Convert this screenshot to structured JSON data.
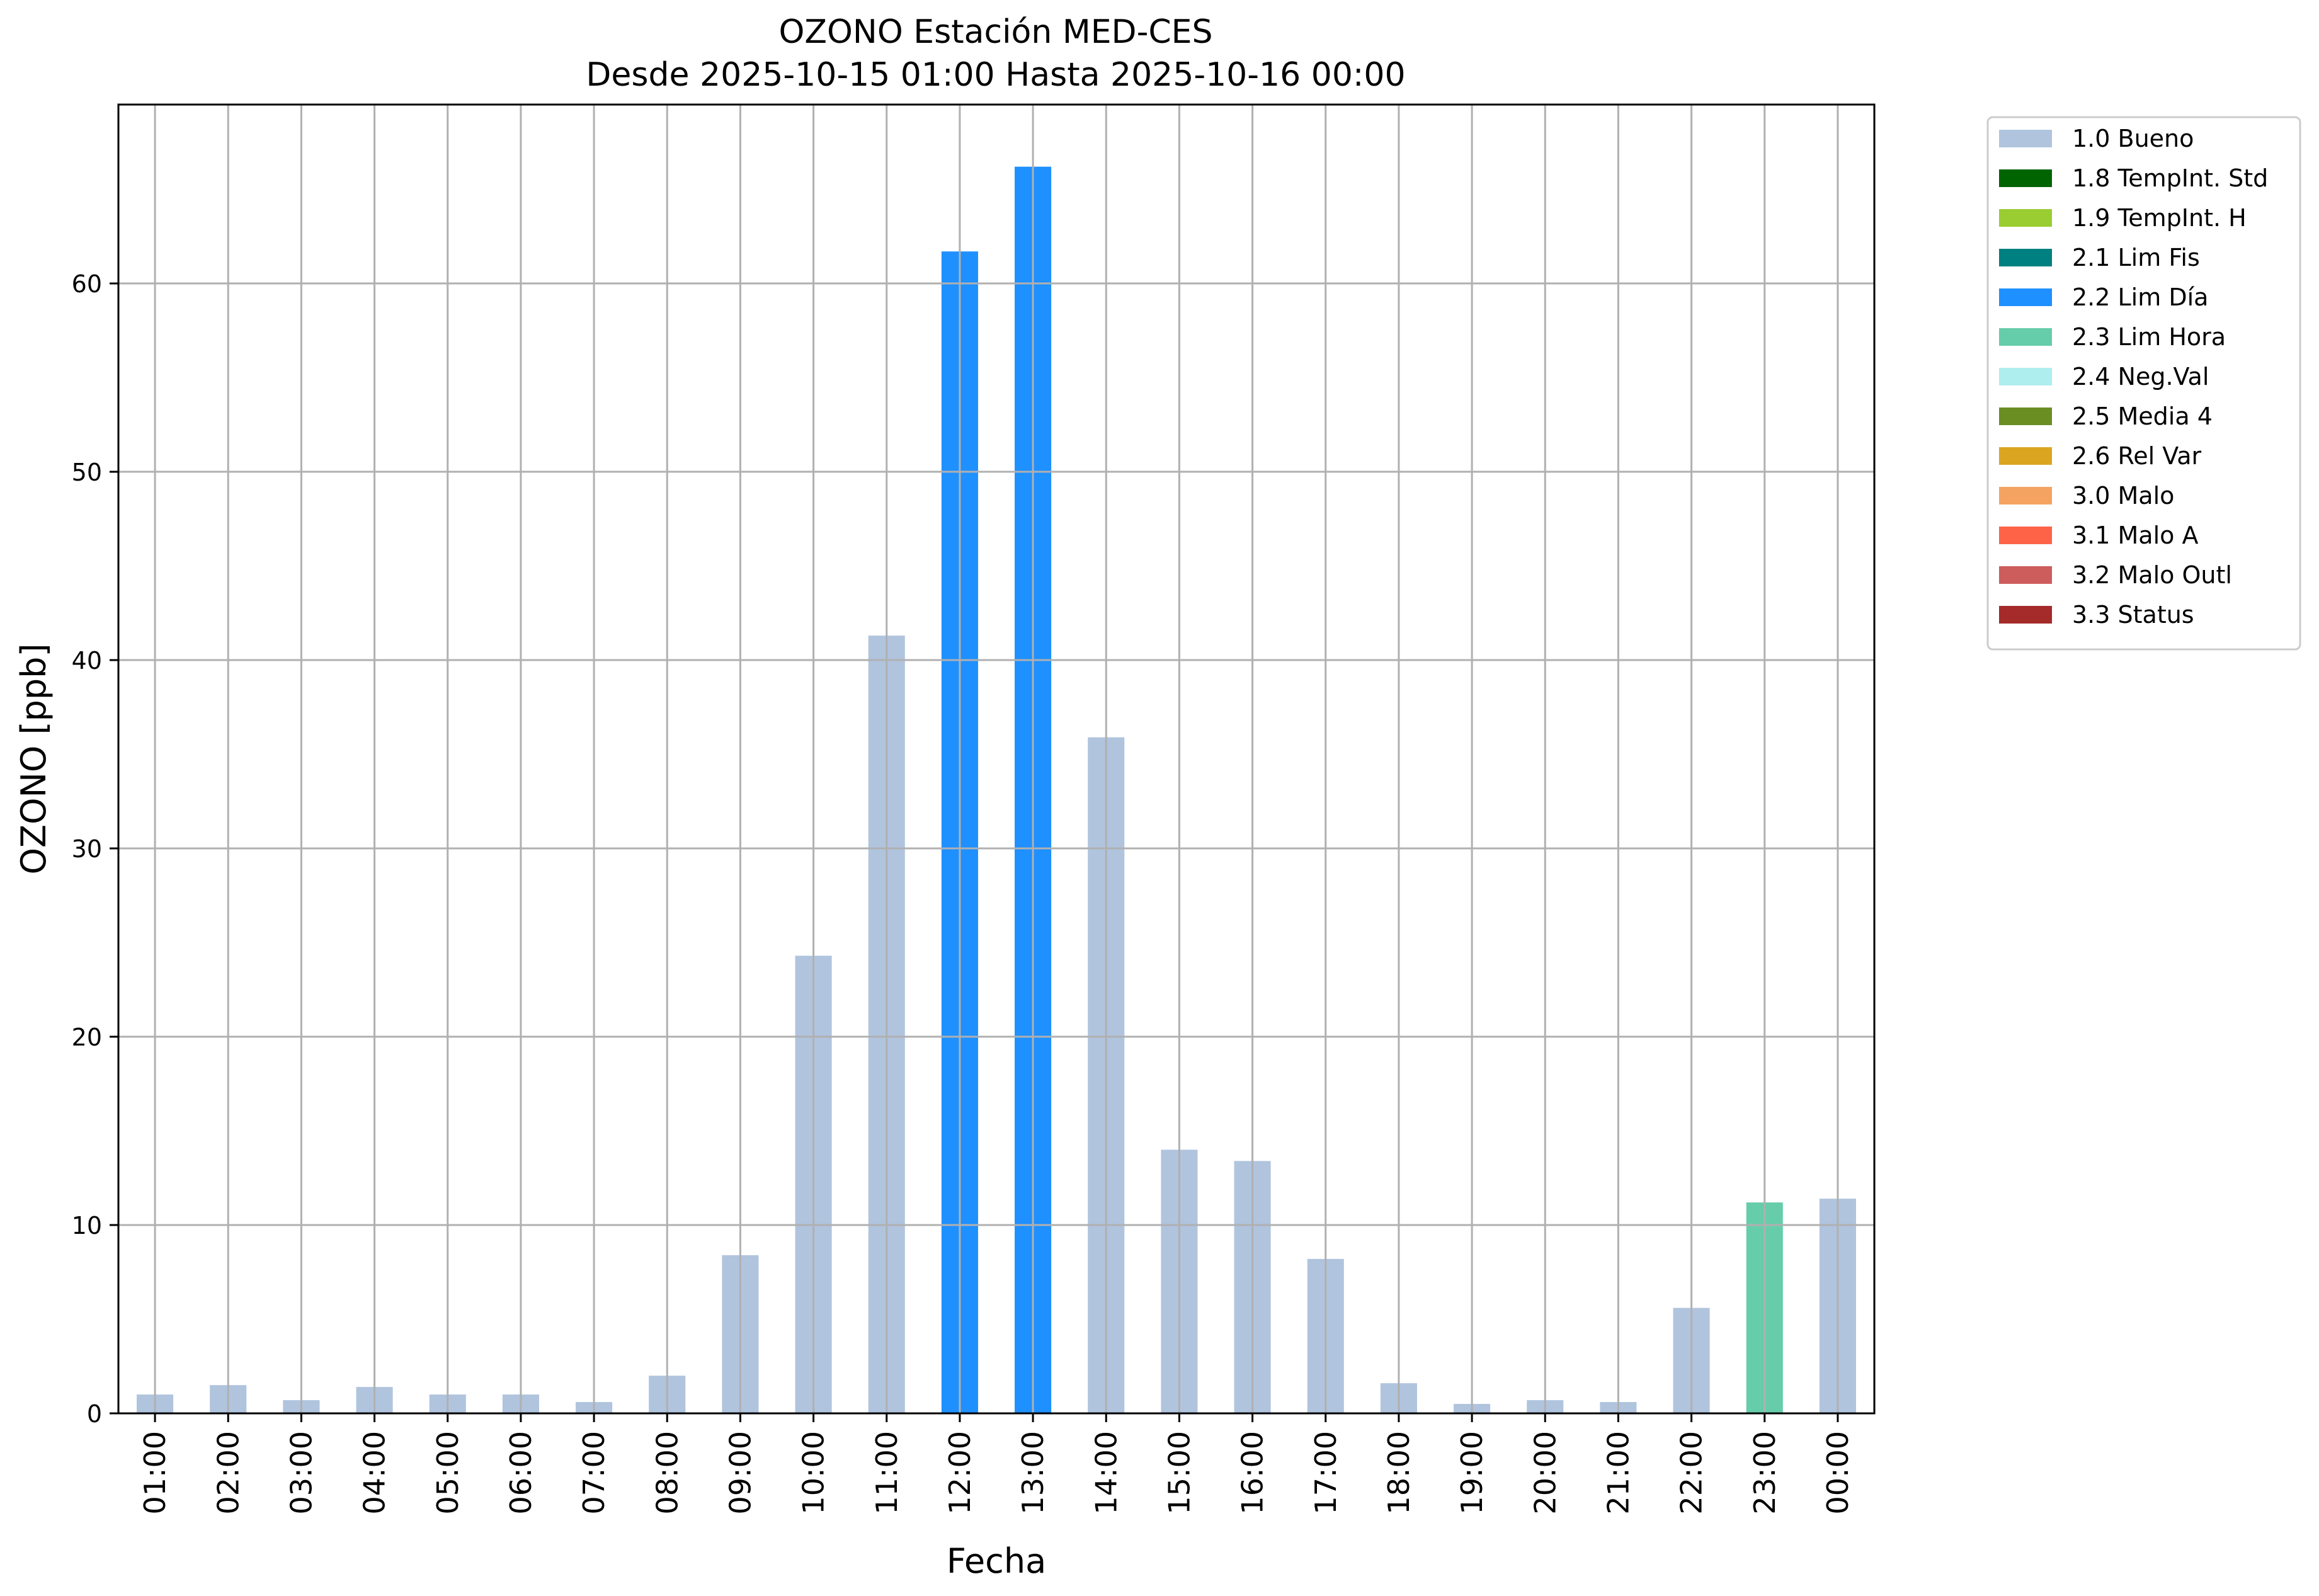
{
  "chart_data": {
    "type": "bar",
    "title": "OZONO Estación MED-CES",
    "subtitle": "Desde 2025-10-15 01:00 Hasta 2025-10-16 00:00",
    "xlabel": "Fecha",
    "ylabel": "OZONO [ppb]",
    "ylim": [
      0,
      69.5
    ],
    "yticks": [
      "0",
      "10",
      "20",
      "30",
      "40",
      "50",
      "60"
    ],
    "grid": true,
    "legend_position": "outside-top-right",
    "categories": [
      "01:00",
      "02:00",
      "03:00",
      "04:00",
      "05:00",
      "06:00",
      "07:00",
      "08:00",
      "09:00",
      "10:00",
      "11:00",
      "12:00",
      "13:00",
      "14:00",
      "15:00",
      "16:00",
      "17:00",
      "18:00",
      "19:00",
      "20:00",
      "21:00",
      "22:00",
      "23:00",
      "00:00"
    ],
    "values": [
      1.0,
      1.5,
      0.7,
      1.4,
      1.0,
      1.0,
      0.6,
      2.0,
      8.4,
      24.3,
      41.3,
      61.7,
      66.2,
      35.9,
      14.0,
      13.4,
      8.2,
      1.6,
      0.5,
      0.7,
      0.6,
      5.6,
      11.2,
      11.4
    ],
    "flags": [
      "1.0 Bueno",
      "1.0 Bueno",
      "1.0 Bueno",
      "1.0 Bueno",
      "1.0 Bueno",
      "1.0 Bueno",
      "1.0 Bueno",
      "1.0 Bueno",
      "1.0 Bueno",
      "1.0 Bueno",
      "1.0 Bueno",
      "2.2 Lim Día",
      "2.2 Lim Día",
      "1.0 Bueno",
      "1.0 Bueno",
      "1.0 Bueno",
      "1.0 Bueno",
      "1.0 Bueno",
      "1.0 Bueno",
      "1.0 Bueno",
      "1.0 Bueno",
      "1.0 Bueno",
      "2.3 Lim Hora",
      "1.0 Bueno"
    ],
    "legend": [
      {
        "label": "1.0 Bueno",
        "color": "#b0c4de"
      },
      {
        "label": "1.8 TempInt. Std",
        "color": "#006400"
      },
      {
        "label": "1.9 TempInt. H",
        "color": "#9acd32"
      },
      {
        "label": "2.1 Lim Fis",
        "color": "#008080"
      },
      {
        "label": "2.2 Lim Día",
        "color": "#1e90ff"
      },
      {
        "label": "2.3 Lim Hora",
        "color": "#66cdaa"
      },
      {
        "label": "2.4 Neg.Val",
        "color": "#afeeee"
      },
      {
        "label": "2.5 Media 4",
        "color": "#6b8e23"
      },
      {
        "label": "2.6 Rel Var",
        "color": "#daa520"
      },
      {
        "label": "3.0 Malo",
        "color": "#f4a460"
      },
      {
        "label": "3.1 Malo A",
        "color": "#ff6347"
      },
      {
        "label": "3.2 Malo Outl",
        "color": "#cd5c5c"
      },
      {
        "label": "3.3 Status",
        "color": "#a52a2a"
      }
    ]
  }
}
